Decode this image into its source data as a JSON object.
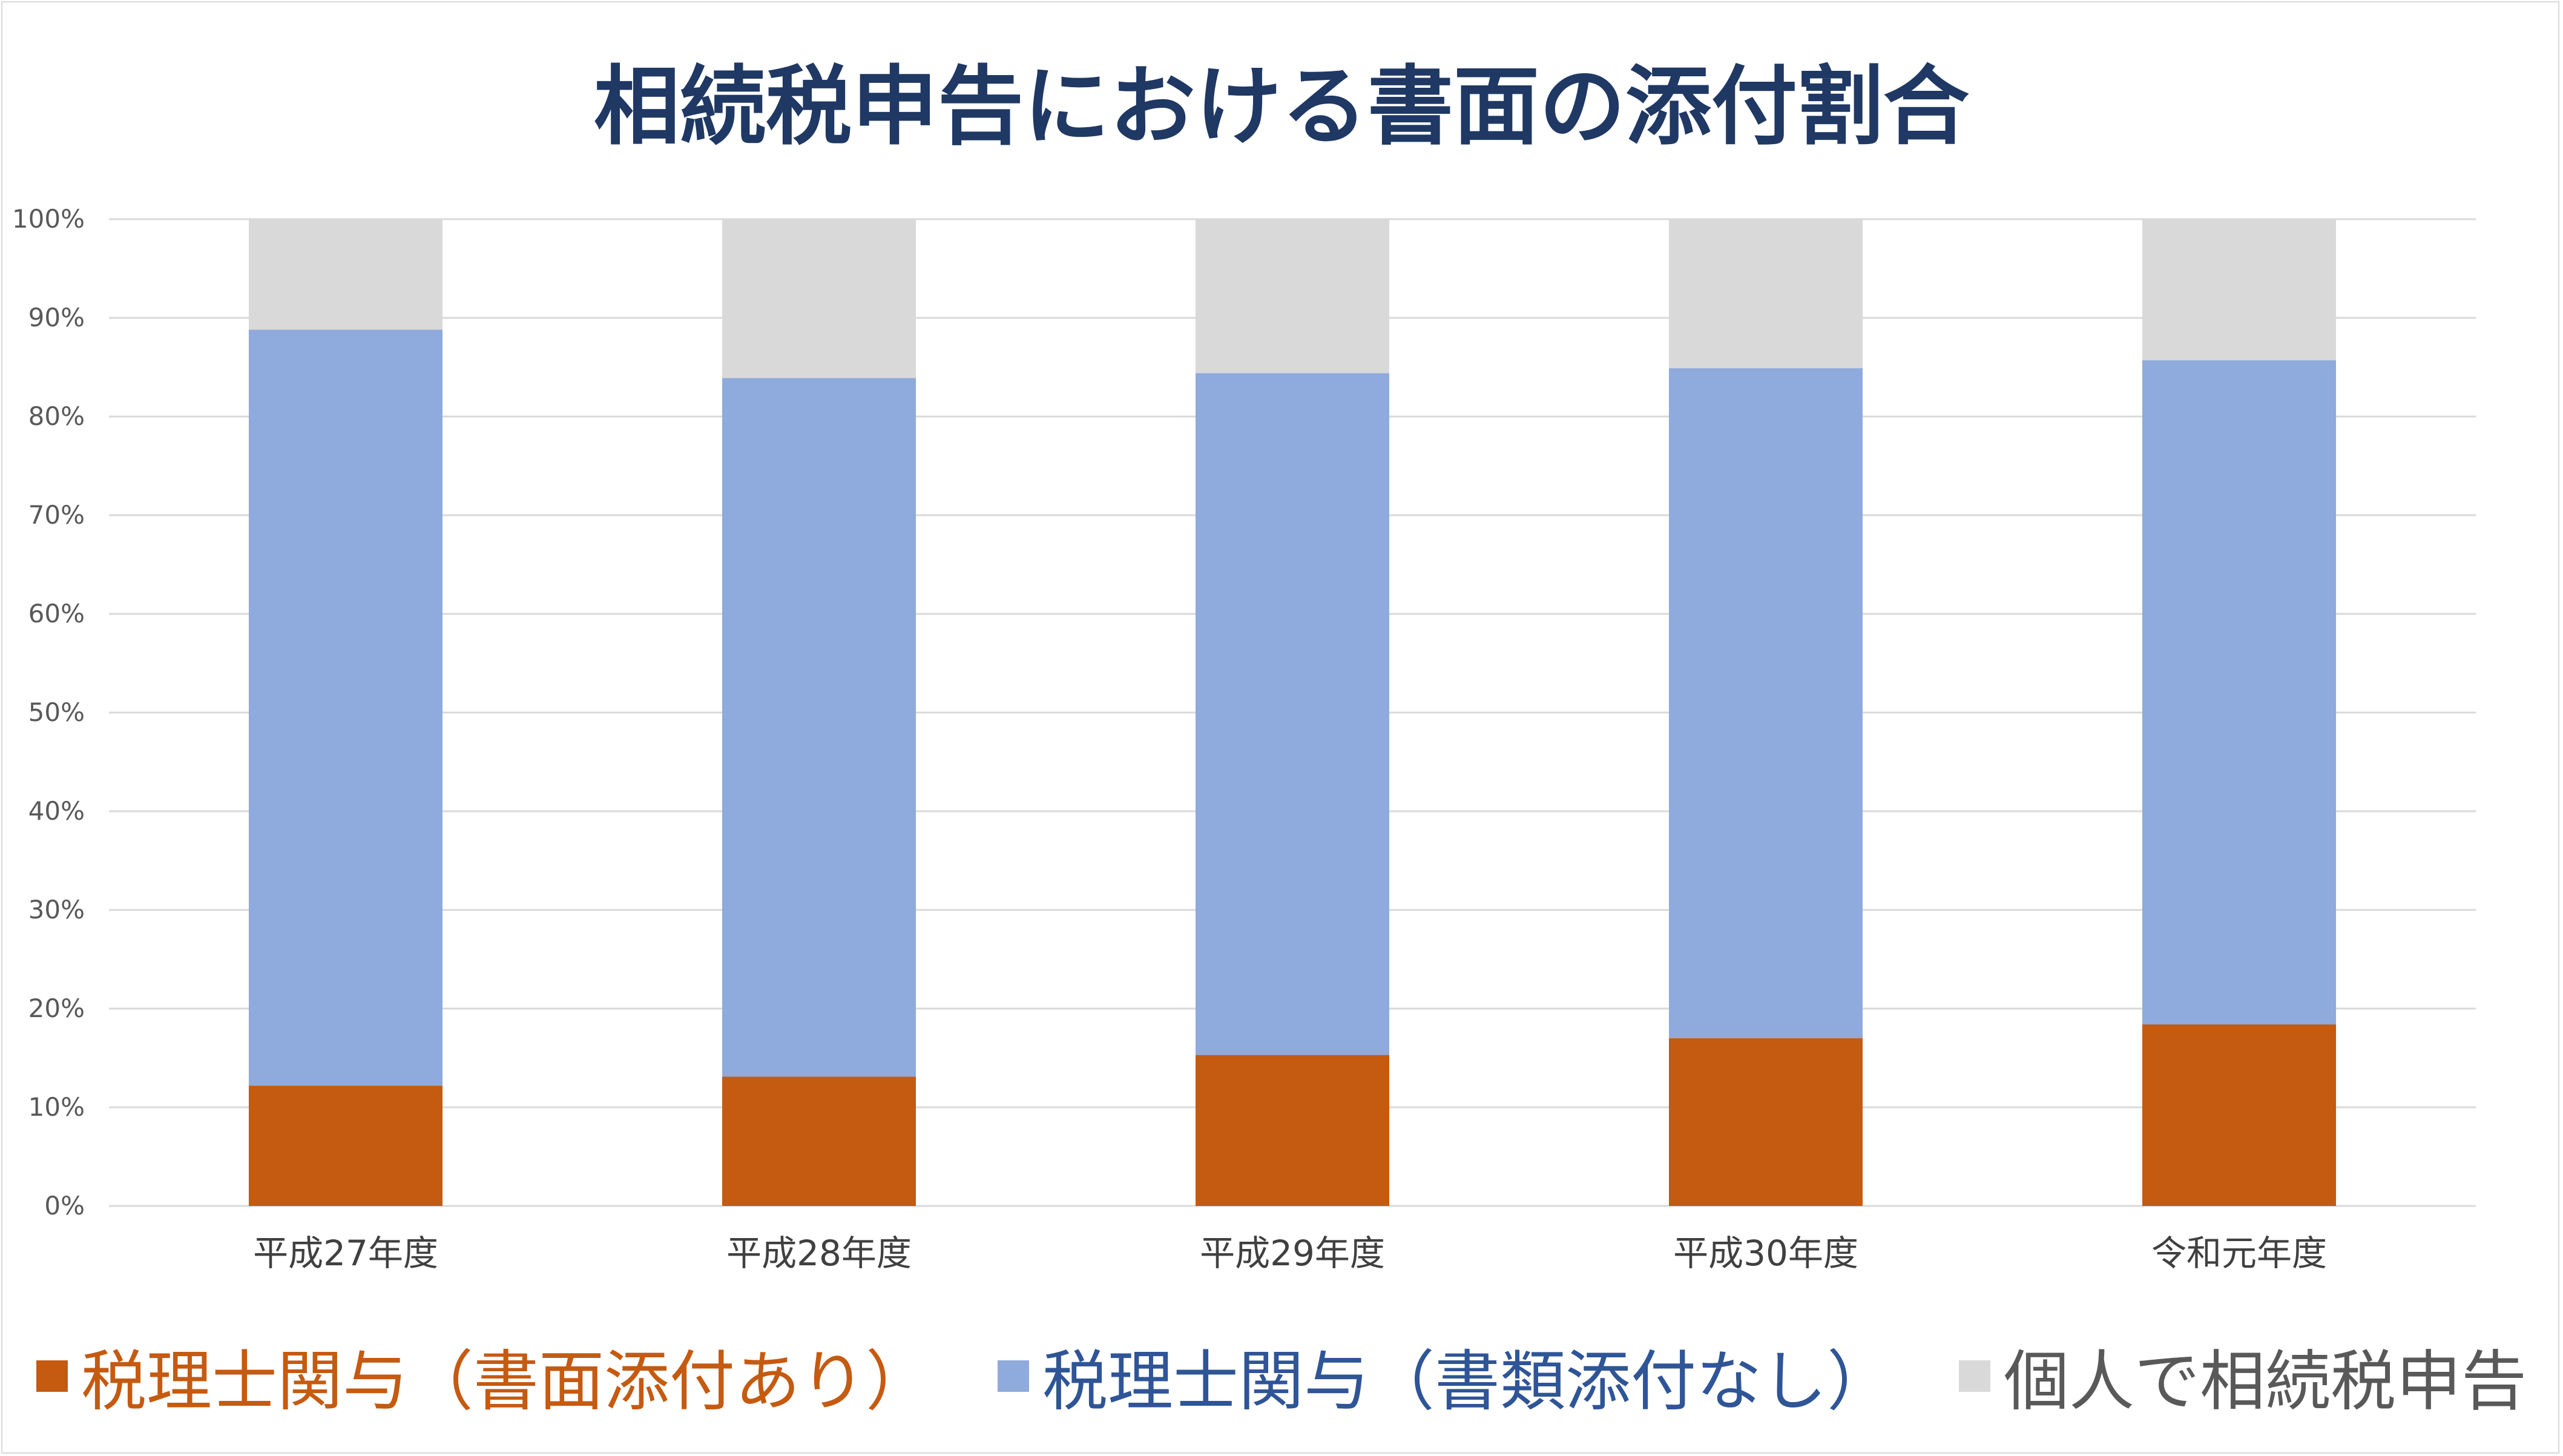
{
  "chart_data": {
    "type": "bar",
    "stacked": true,
    "title": "相続税申告における書面の添付割合",
    "categories": [
      "平成27年度",
      "平成28年度",
      "平成29年度",
      "平成30年度",
      "令和元年度"
    ],
    "series": [
      {
        "name": "税理士関与（書面添付あり）",
        "color": "#c55a11",
        "values": [
          12.2,
          13.1,
          15.3,
          17.0,
          18.4
        ]
      },
      {
        "name": "税理士関与（書類添付なし）",
        "color": "#8faadc",
        "values": [
          76.6,
          70.8,
          69.1,
          67.9,
          67.3
        ]
      },
      {
        "name": "個人で相続税申告",
        "color": "#d9d9d9",
        "values": [
          11.2,
          16.1,
          15.6,
          15.1,
          14.3
        ]
      }
    ],
    "yticks": [
      "0%",
      "10%",
      "20%",
      "30%",
      "40%",
      "50%",
      "60%",
      "70%",
      "80%",
      "90%",
      "100%"
    ],
    "ylim": [
      0,
      100
    ],
    "grid": true,
    "legend_position": "bottom",
    "legend_text_colors": [
      "#c55a11",
      "#2f5597",
      "#595959"
    ]
  }
}
